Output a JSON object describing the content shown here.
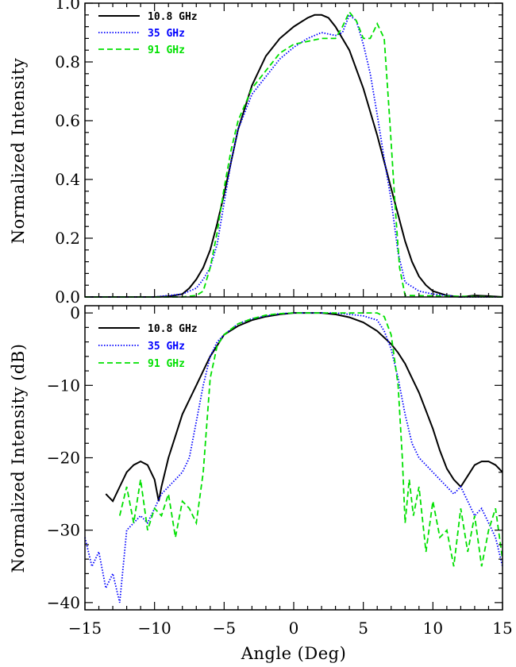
{
  "chart_data": [
    {
      "type": "line",
      "panel": "top",
      "title": "",
      "xlabel": "",
      "ylabel": "Normalized Intensity",
      "xlim": [
        -15,
        15
      ],
      "ylim": [
        0,
        1.0
      ],
      "xticks": [],
      "yticks": [
        "0.0",
        "0.2",
        "0.4",
        "0.6",
        "0.8",
        "1.0"
      ],
      "ytick_values": [
        0,
        0.2,
        0.4,
        0.6,
        0.8,
        1.0
      ],
      "grid": false,
      "legend": "top-left",
      "series": [
        {
          "name": "10.8 GHz",
          "color": "#000000",
          "dash": "solid",
          "x": [
            -15,
            -12,
            -10,
            -9,
            -8,
            -7.5,
            -7,
            -6.5,
            -6,
            -5.5,
            -5,
            -4.5,
            -4,
            -3,
            -2,
            -1,
            0,
            1,
            1.5,
            2,
            2.5,
            3,
            4,
            5,
            6,
            6.5,
            7,
            7.5,
            8,
            8.5,
            9,
            9.5,
            10,
            11,
            12,
            13,
            14,
            15
          ],
          "values": [
            0.0,
            0.0,
            0.0,
            0.002,
            0.01,
            0.03,
            0.06,
            0.1,
            0.16,
            0.25,
            0.35,
            0.46,
            0.57,
            0.72,
            0.82,
            0.88,
            0.92,
            0.95,
            0.96,
            0.96,
            0.95,
            0.92,
            0.84,
            0.71,
            0.55,
            0.46,
            0.37,
            0.28,
            0.19,
            0.12,
            0.07,
            0.04,
            0.02,
            0.005,
            0.0,
            0.005,
            0.003,
            0.0
          ]
        },
        {
          "name": "35 GHz",
          "color": "#0000ff",
          "dash": "dotted",
          "x": [
            -15,
            -12,
            -10,
            -8,
            -7,
            -6.5,
            -6,
            -5.5,
            -5,
            -4.5,
            -4,
            -3,
            -2,
            -1,
            0,
            1,
            2,
            3,
            3.5,
            4,
            4.5,
            5,
            5.5,
            6,
            6.5,
            7,
            7.5,
            8,
            9,
            10,
            12,
            15
          ],
          "values": [
            0.0,
            0.0,
            0.0,
            0.01,
            0.03,
            0.06,
            0.1,
            0.18,
            0.32,
            0.46,
            0.57,
            0.69,
            0.75,
            0.81,
            0.85,
            0.88,
            0.9,
            0.89,
            0.9,
            0.96,
            0.94,
            0.86,
            0.76,
            0.62,
            0.47,
            0.33,
            0.15,
            0.05,
            0.02,
            0.01,
            0.0,
            0.0
          ]
        },
        {
          "name": "91 GHz",
          "color": "#00e000",
          "dash": "dashed",
          "x": [
            -15,
            -8,
            -7,
            -6.5,
            -6,
            -5.5,
            -5,
            -4.5,
            -4,
            -3,
            -2,
            -1,
            0,
            1,
            2,
            3,
            3.5,
            4,
            4.5,
            5,
            5.5,
            6,
            6.5,
            6.9,
            7.3,
            7.6,
            8,
            15
          ],
          "values": [
            0.0,
            0.0,
            0.005,
            0.02,
            0.1,
            0.22,
            0.37,
            0.5,
            0.6,
            0.71,
            0.77,
            0.83,
            0.86,
            0.87,
            0.88,
            0.88,
            0.92,
            0.97,
            0.94,
            0.88,
            0.88,
            0.93,
            0.88,
            0.6,
            0.3,
            0.1,
            0.005,
            0.0
          ]
        }
      ]
    },
    {
      "type": "line",
      "panel": "bottom",
      "title": "",
      "xlabel": "Angle (Deg)",
      "ylabel": "Normalized Intensity (dB)",
      "xlim": [
        -15,
        15
      ],
      "ylim": [
        -41,
        1
      ],
      "xticks": [
        "−15",
        "−10",
        "−5",
        "0",
        "5",
        "10",
        "15"
      ],
      "xtick_values": [
        -15,
        -10,
        -5,
        0,
        5,
        10,
        15
      ],
      "yticks": [
        "−40",
        "−30",
        "−20",
        "−10",
        "0"
      ],
      "ytick_values": [
        -40,
        -30,
        -20,
        -10,
        0
      ],
      "grid": false,
      "legend": "top-left",
      "series": [
        {
          "name": "10.8 GHz",
          "color": "#000000",
          "dash": "solid",
          "x": [
            -13.5,
            -13,
            -12.5,
            -12,
            -11.5,
            -11,
            -10.5,
            -10,
            -9.7,
            -9.5,
            -9,
            -8.5,
            -8,
            -7.5,
            -7,
            -6.5,
            -6,
            -5.5,
            -5,
            -4,
            -3,
            -2,
            -1,
            0,
            1,
            2,
            3,
            4,
            5,
            6,
            7,
            7.5,
            8,
            8.5,
            9,
            9.5,
            10,
            10.5,
            11,
            11.5,
            12,
            12.5,
            13,
            13.5,
            14,
            14.5,
            15
          ],
          "values": [
            -25,
            -26,
            -24,
            -22,
            -21,
            -20.5,
            -21,
            -23,
            -26,
            -24,
            -20,
            -17,
            -14,
            -12,
            -10,
            -8,
            -6,
            -4.5,
            -3,
            -1.8,
            -1.0,
            -0.5,
            -0.2,
            0,
            0,
            0,
            -0.2,
            -0.6,
            -1.3,
            -2.5,
            -4.3,
            -5.5,
            -7,
            -9,
            -11,
            -13.5,
            -16,
            -19,
            -21.5,
            -23,
            -24,
            -22.5,
            -21,
            -20.5,
            -20.5,
            -21,
            -22
          ]
        },
        {
          "name": "35 GHz",
          "color": "#0000ff",
          "dash": "dotted",
          "x": [
            -15,
            -14.5,
            -14,
            -13.5,
            -13,
            -12.5,
            -12,
            -11.5,
            -11,
            -10.5,
            -10,
            -9.5,
            -9,
            -8.5,
            -8,
            -7.5,
            -7,
            -6.5,
            -6,
            -5.5,
            -5,
            -4,
            -3,
            -2,
            -1,
            0,
            1,
            2,
            3,
            4,
            5,
            6,
            6.5,
            7,
            7.5,
            8,
            8.5,
            9,
            9.5,
            10,
            10.5,
            11,
            11.5,
            12,
            12.5,
            13,
            13.5,
            14,
            14.5,
            15
          ],
          "values": [
            -31,
            -35,
            -33,
            -38,
            -36,
            -40,
            -30,
            -29,
            -28,
            -29,
            -27,
            -25,
            -24,
            -23,
            -22,
            -20,
            -15,
            -10,
            -6,
            -4,
            -3,
            -1.5,
            -0.8,
            -0.4,
            -0.1,
            0,
            0,
            0,
            0,
            -0.2,
            -0.4,
            -1,
            -2.5,
            -5,
            -9,
            -14,
            -18,
            -20,
            -21,
            -22,
            -23,
            -24,
            -25,
            -24,
            -26,
            -28,
            -27,
            -29,
            -31,
            -35
          ]
        },
        {
          "name": "91 GHz",
          "color": "#00e000",
          "dash": "dashed",
          "x": [
            -12.5,
            -12,
            -11.5,
            -11,
            -10.5,
            -10,
            -9.5,
            -9,
            -8.5,
            -8,
            -7.5,
            -7,
            -6.5,
            -6,
            -5.5,
            -5,
            -4,
            -3,
            -2,
            -1,
            0,
            1,
            2,
            3,
            4,
            5,
            6,
            6.5,
            7,
            7.5,
            7.8,
            8,
            8.3,
            8.6,
            9,
            9.5,
            10,
            10.5,
            11,
            11.5,
            12,
            12.5,
            13,
            13.5,
            14,
            14.5,
            15
          ],
          "values": [
            -28,
            -24,
            -29,
            -23,
            -30,
            -27,
            -28,
            -25,
            -31,
            -26,
            -27,
            -29,
            -22,
            -9,
            -4.5,
            -3,
            -1.5,
            -0.8,
            -0.3,
            -0.1,
            0,
            0,
            0,
            0,
            0,
            0,
            0,
            -0.5,
            -3,
            -10,
            -20,
            -29,
            -23,
            -28,
            -24,
            -33,
            -26,
            -31,
            -30,
            -35,
            -27,
            -33,
            -28,
            -35,
            -30,
            -27,
            -34
          ]
        }
      ]
    }
  ]
}
